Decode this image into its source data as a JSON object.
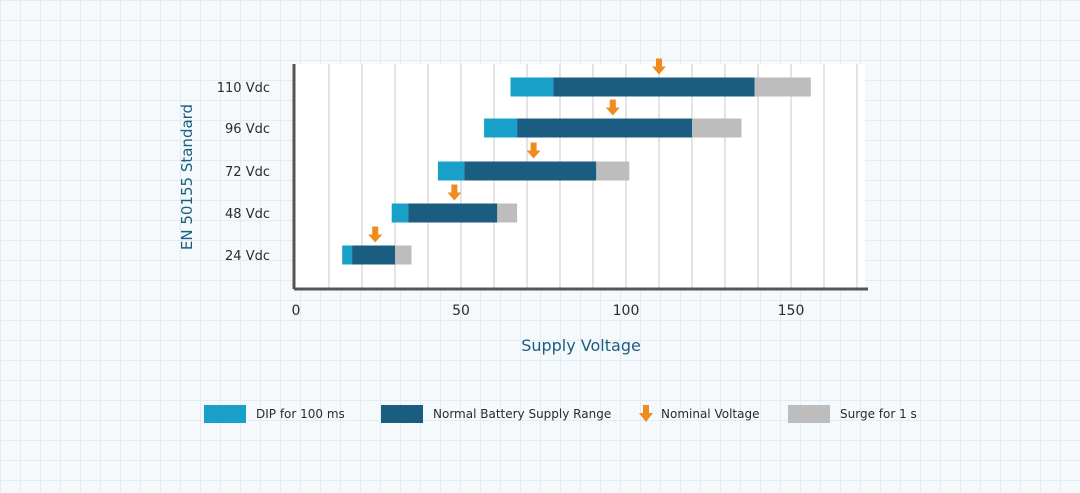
{
  "chart_data": {
    "type": "bar",
    "subtype": "floating-range",
    "ylabel": "EN 50155 Standard",
    "xlabel": "Supply Voltage",
    "xlim": [
      0,
      170
    ],
    "xticks": [
      0,
      50,
      100,
      150
    ],
    "grid": {
      "vertical": true,
      "horizontal": false
    },
    "legend_position": "bottom",
    "categories": [
      "24 Vdc",
      "48 Vdc",
      "72 Vdc",
      "96 Vdc",
      "110 Vdc"
    ],
    "series": [
      {
        "name": "DIP for 100 ms",
        "color": "#18a0c8",
        "ranges": [
          [
            14,
            17
          ],
          [
            29,
            34
          ],
          [
            43,
            51
          ],
          [
            57,
            67
          ],
          [
            65,
            78
          ]
        ]
      },
      {
        "name": "Normal Battery Supply Range",
        "color": "#1a5d80",
        "ranges": [
          [
            17,
            30
          ],
          [
            34,
            61
          ],
          [
            51,
            91
          ],
          [
            67,
            120
          ],
          [
            78,
            139
          ]
        ]
      },
      {
        "name": "Surge for 1 s",
        "color": "#bdbdbd",
        "ranges": [
          [
            30,
            35
          ],
          [
            61,
            67
          ],
          [
            91,
            101
          ],
          [
            120,
            135
          ],
          [
            139,
            156
          ]
        ]
      }
    ],
    "nominal": {
      "name": "Nominal Voltage",
      "color": "#f08c1e",
      "values": [
        24,
        48,
        72,
        96,
        110
      ]
    }
  },
  "legend": [
    {
      "label": "DIP for 100 ms",
      "kind": "swatch",
      "color": "#18a0c8"
    },
    {
      "label": "Normal Battery Supply Range",
      "kind": "swatch",
      "color": "#1a5d80"
    },
    {
      "label": "Nominal Voltage",
      "kind": "arrow",
      "color": "#f08c1e"
    },
    {
      "label": "Surge for 1 s",
      "kind": "swatch",
      "color": "#bdbdbd"
    }
  ]
}
